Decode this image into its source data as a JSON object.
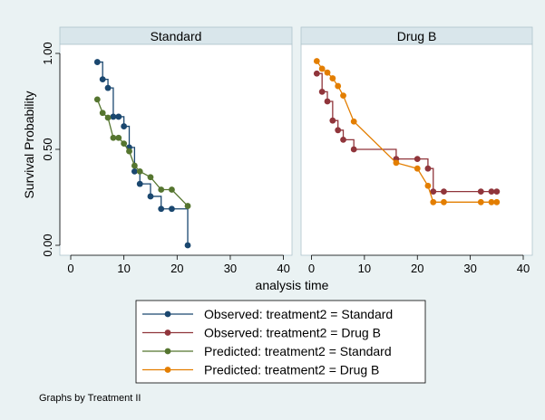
{
  "chart_data": {
    "type": "line",
    "ylabel": "Survival Probability",
    "xlabel": "analysis time",
    "note": "Graphs by Treatment II",
    "xlim": [
      0,
      40
    ],
    "ylim": [
      0,
      1
    ],
    "x_ticks": [
      0,
      10,
      20,
      30,
      40
    ],
    "y_ticks": [
      0,
      0.5,
      1
    ],
    "y_tick_labels": [
      "0.00",
      "0.50",
      "1.00"
    ],
    "grid": false,
    "legend_position": "bottom",
    "colors": {
      "observed_standard": "#1a476f",
      "observed_drugb": "#90353b",
      "predicted_standard": "#55752f",
      "predicted_drugb": "#e37e00"
    },
    "legend": [
      {
        "label": "Observed: treatment2 = Standard",
        "color": "#1a476f"
      },
      {
        "label": "Observed: treatment2 = Drug B",
        "color": "#90353b"
      },
      {
        "label": "Predicted: treatment2 = Standard",
        "color": "#55752f"
      },
      {
        "label": "Predicted: treatment2 = Drug B",
        "color": "#e37e00"
      }
    ],
    "panels": [
      {
        "title": "Standard",
        "series": [
          {
            "name": "Observed: treatment2 = Standard",
            "step": true,
            "color": "#1a476f",
            "x": [
              5,
              6,
              7,
              8,
              9,
              10,
              11,
              12,
              13,
              15,
              17,
              19,
              22
            ],
            "y": [
              0.955,
              0.865,
              0.82,
              0.67,
              0.67,
              0.62,
              0.51,
              0.385,
              0.32,
              0.255,
              0.19,
              0.19,
              0.0
            ]
          },
          {
            "name": "Predicted: treatment2 = Standard",
            "step": false,
            "color": "#55752f",
            "x": [
              5,
              6,
              7,
              8,
              9,
              10,
              11,
              12,
              13,
              15,
              17,
              19,
              22
            ],
            "y": [
              0.76,
              0.69,
              0.665,
              0.56,
              0.56,
              0.53,
              0.49,
              0.415,
              0.385,
              0.355,
              0.29,
              0.29,
              0.205
            ]
          }
        ]
      },
      {
        "title": "Drug B",
        "series": [
          {
            "name": "Observed: treatment2 = Drug B",
            "step": true,
            "color": "#90353b",
            "x": [
              1,
              2,
              3,
              4,
              5,
              6,
              8,
              16,
              20,
              22,
              23,
              25,
              32,
              34,
              35
            ],
            "y": [
              0.895,
              0.8,
              0.75,
              0.65,
              0.6,
              0.55,
              0.5,
              0.45,
              0.45,
              0.4,
              0.28,
              0.28,
              0.28,
              0.28,
              0.28
            ]
          },
          {
            "name": "Predicted: treatment2 = Drug B",
            "step": false,
            "color": "#e37e00",
            "x": [
              1,
              2,
              3,
              4,
              5,
              6,
              8,
              16,
              20,
              22,
              23,
              25,
              32,
              34,
              35
            ],
            "y": [
              0.96,
              0.92,
              0.9,
              0.87,
              0.83,
              0.78,
              0.645,
              0.43,
              0.4,
              0.31,
              0.225,
              0.225,
              0.225,
              0.225,
              0.225
            ]
          }
        ]
      }
    ]
  }
}
